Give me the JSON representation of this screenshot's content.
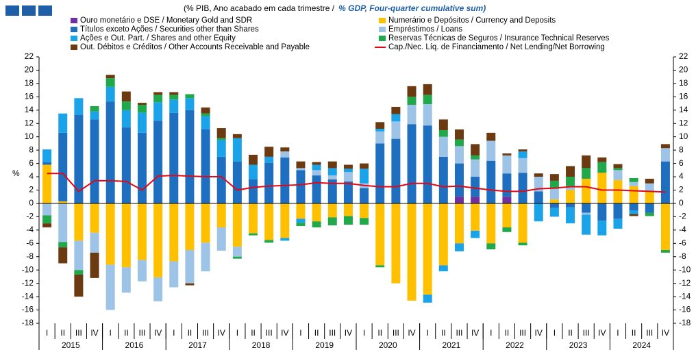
{
  "chart_data": {
    "type": "stacked_bar_line",
    "title": "(% PIB, Ano acabado em cada trimestre  /",
    "title_en": "% GDP, Four-quarter cumulative sum)",
    "y_label": "%",
    "categories": [
      "I",
      "II",
      "III",
      "IV",
      "I",
      "II",
      "III",
      "IV",
      "I",
      "II",
      "III",
      "IV",
      "I",
      "II",
      "III",
      "IV",
      "I",
      "II",
      "III",
      "IV",
      "I",
      "II",
      "III",
      "IV",
      "I",
      "II",
      "III",
      "IV",
      "I",
      "II",
      "III",
      "IV",
      "I",
      "II",
      "III",
      "IV",
      "I",
      "II",
      "III",
      "IV"
    ],
    "years": [
      "2015",
      "2016",
      "2017",
      "2018",
      "2019",
      "2020",
      "2021",
      "2022",
      "2023",
      "2024"
    ],
    "ylim": [
      -18,
      22
    ],
    "yticks": [
      -18,
      -16,
      -14,
      -12,
      -10,
      -8,
      -6,
      -4,
      -2,
      0,
      2,
      4,
      6,
      8,
      10,
      12,
      14,
      16,
      18,
      20,
      22
    ],
    "series": [
      {
        "name": "Ouro monetário e DSE / Monetary Gold and SDR",
        "color": "#7030a0",
        "values": [
          0,
          0,
          0,
          0,
          0,
          0,
          0,
          0,
          0,
          0,
          0,
          0,
          0,
          0,
          0,
          0,
          0,
          0,
          0,
          0,
          0,
          0,
          0,
          0,
          0,
          0,
          1,
          1,
          0,
          1,
          0,
          0,
          0,
          0,
          0,
          0,
          0,
          0,
          0,
          0
        ]
      },
      {
        "name": "Títulos exceto Ações / Securities other than Shares",
        "color": "#1f6fc1",
        "values": [
          0.4,
          10.3,
          13.3,
          12.6,
          15.3,
          11.4,
          10.6,
          12.4,
          13.6,
          14,
          11.1,
          7,
          6.3,
          3.6,
          6.1,
          6.9,
          5,
          4.2,
          3.6,
          3.3,
          2.3,
          9,
          9.7,
          11.9,
          11.7,
          7,
          5,
          3,
          6.4,
          3.5,
          4.6,
          1.8,
          -0.7,
          -0.6,
          -1.4,
          -2.6,
          -2.3,
          -1.1,
          -1.4,
          6.3
        ]
      },
      {
        "name": "Ações e Out. Part. / Shares and other Equity",
        "color": "#1aa3e8",
        "values": [
          1.9,
          2.9,
          2.5,
          1.2,
          2.2,
          2.6,
          3,
          2.8,
          2,
          1.8,
          2,
          2.5,
          3.5,
          2.2,
          0.9,
          -0.4,
          -0.6,
          0.8,
          1.1,
          0.5,
          2.2,
          0.4,
          1.1,
          0,
          -1.2,
          -0.9,
          -1.2,
          -1.1,
          0,
          0,
          1,
          -2.7,
          -1.3,
          -2.4,
          -3,
          -2.2,
          -1.5,
          -0.5,
          0,
          0
        ]
      },
      {
        "name": "Out. Débitos e Créditos / Other Accounts Receivable and Payable",
        "color": "#6b3a10",
        "values": [
          -0.6,
          -2.4,
          -3.3,
          -3.8,
          0.5,
          1.5,
          0.3,
          0.4,
          0.4,
          -0.3,
          0.9,
          1.5,
          0.6,
          1.5,
          1.5,
          0.6,
          1,
          0.4,
          1,
          0.6,
          0.8,
          1,
          1.1,
          1.6,
          1.6,
          1.6,
          1.5,
          1.7,
          1.2,
          0.3,
          0.3,
          0.5,
          1,
          1.6,
          1.9,
          0.7,
          0.6,
          -0.3,
          0.7,
          0.6
        ]
      },
      {
        "name": "Numerário e Depósitos / Currency and Deposits",
        "color": "#ffc000",
        "values": [
          5.8,
          0.3,
          -5.6,
          -4.4,
          -9.2,
          -9.6,
          -8.5,
          -11.1,
          -8.7,
          -7,
          -5.9,
          -3.6,
          -6.5,
          -4.5,
          -5.5,
          -5.2,
          -2.3,
          -2.7,
          -2.1,
          -1.9,
          -2.2,
          -9.3,
          -12,
          -14.6,
          -13.7,
          -9.3,
          -6,
          -4.1,
          -6,
          -3.6,
          -5.9,
          0,
          0.6,
          2,
          3.7,
          4.6,
          3.5,
          2.6,
          1.7,
          -7
        ]
      },
      {
        "name": "Empréstimos / Loans",
        "color": "#9dc3e6",
        "values": [
          -1.8,
          -5.8,
          -4.4,
          -3,
          -6.8,
          -3.8,
          -3.2,
          -3.6,
          -3.9,
          -5,
          -4.3,
          -3.5,
          -1.5,
          0,
          0,
          0.9,
          0.3,
          0.8,
          0.6,
          1.4,
          0.7,
          1.8,
          2.6,
          2.9,
          3.2,
          3,
          2.6,
          2.6,
          3,
          2.7,
          2.2,
          2.2,
          1.6,
          0.6,
          -0.3,
          0,
          1.5,
          0.6,
          1.3,
          2
        ]
      },
      {
        "name": "Reservas Técnicas de Seguros / Insurance Technical Reserves",
        "color": "#21a84a",
        "values": [
          -1.2,
          -0.8,
          -0.7,
          0.8,
          1.3,
          1.3,
          1.2,
          1.1,
          0.7,
          0.6,
          0.4,
          0.3,
          -0.3,
          -0.3,
          -0.4,
          0,
          -0.5,
          -0.9,
          -1.2,
          -1.3,
          -1,
          -0.3,
          0,
          1.2,
          1.4,
          1,
          1,
          0.6,
          -0.9,
          -0.7,
          -0.4,
          0,
          1.2,
          1.4,
          1.6,
          1.6,
          0.3,
          0.6,
          -0.5,
          -0.4
        ]
      },
      {
        "name": "Cap./Nec. Líq. de Financiamento / Net Lending/Net Borrowing",
        "color": "#e30613",
        "kind": "line",
        "values": [
          4.5,
          4.5,
          1.8,
          3.4,
          3.4,
          3.3,
          2,
          4.1,
          4.2,
          4.1,
          4,
          4,
          2,
          2.4,
          2.6,
          2.7,
          2.8,
          3.1,
          3,
          3,
          2.7,
          2.5,
          2.5,
          3,
          3,
          2.5,
          2.6,
          2.3,
          2,
          1.8,
          1.8,
          2.2,
          2.3,
          2.5,
          2.5,
          2,
          2,
          1.9,
          1.8,
          1.7
        ]
      }
    ]
  }
}
